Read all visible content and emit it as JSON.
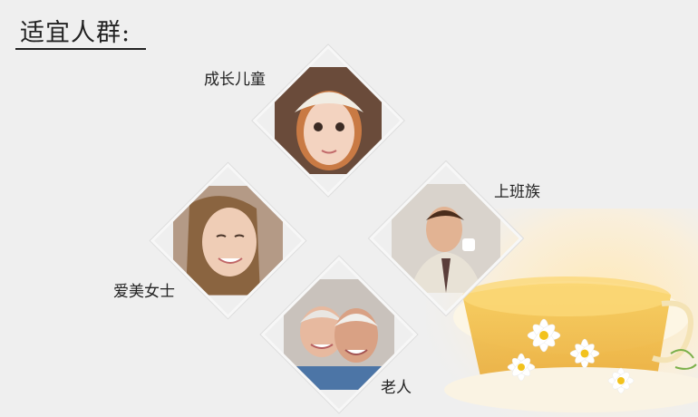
{
  "title": "适宜人群:",
  "groups": [
    {
      "label": "成长儿童",
      "image": "child-photo"
    },
    {
      "label": "上班族",
      "image": "office-worker-photo"
    },
    {
      "label": "爱美女士",
      "image": "woman-photo"
    },
    {
      "label": "老人",
      "image": "elderly-couple-photo"
    }
  ],
  "decoration": "chamomile-tea-photo"
}
